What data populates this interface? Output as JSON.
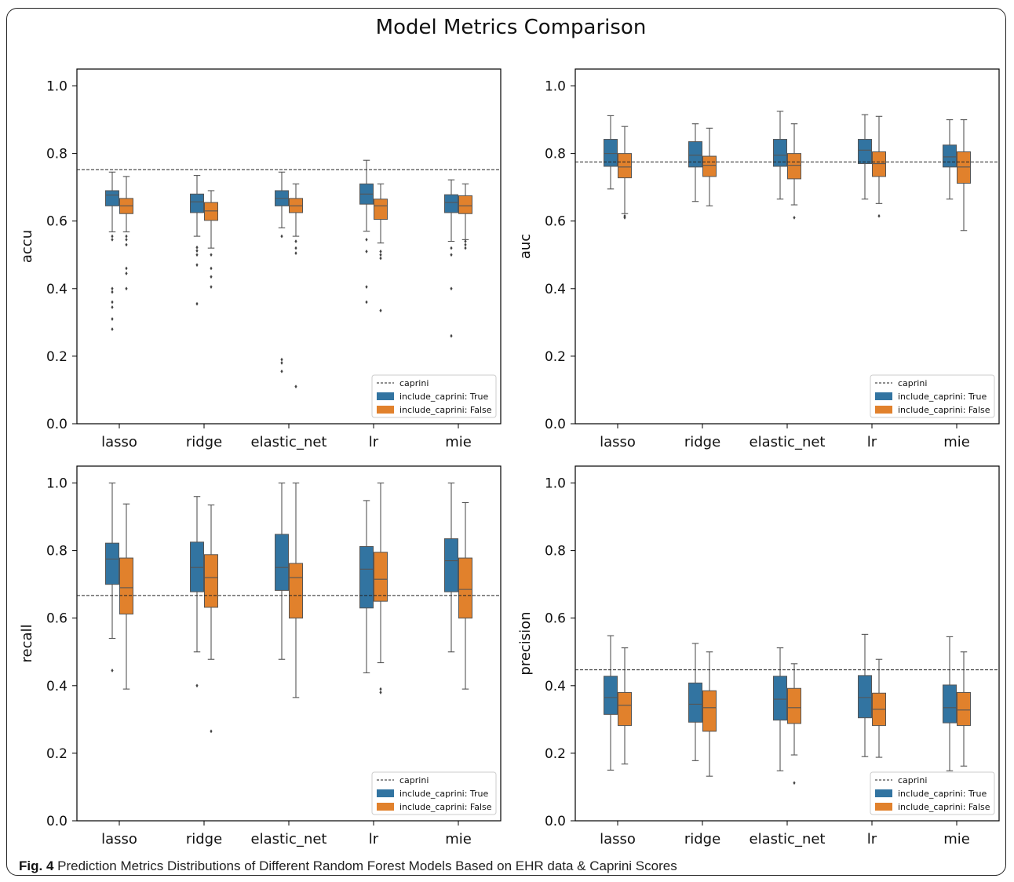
{
  "title": "Model Metrics Comparison",
  "caption": {
    "label": "Fig. 4",
    "text": "Prediction Metrics Distributions of Different Random Forest Models Based on EHR data & Caprini Scores"
  },
  "colors": {
    "true_box": "#3274a1",
    "false_box": "#e1812c",
    "whisker": "#555555",
    "baseline": "#222222"
  },
  "legend": {
    "position": "lower-right",
    "entries": [
      "caprini",
      "include_caprini: True",
      "include_caprini: False"
    ]
  },
  "chart_data": [
    {
      "type": "box",
      "ylabel": "accu",
      "xlabel": "",
      "ylim": [
        0,
        1.05
      ],
      "yticks": [
        "0.0",
        "0.2",
        "0.4",
        "0.6",
        "0.8",
        "1.0"
      ],
      "categories": [
        "lasso",
        "ridge",
        "elastic_net",
        "lr",
        "mie"
      ],
      "baseline": {
        "name": "caprini",
        "value": 0.752
      },
      "series": [
        {
          "name": "include_caprini: True",
          "boxes": [
            {
              "low": 0.568,
              "q1": 0.645,
              "median": 0.677,
              "q3": 0.69,
              "high": 0.745,
              "outliers": [
                0.555,
                0.545,
                0.4,
                0.39,
                0.36,
                0.345,
                0.31,
                0.28
              ]
            },
            {
              "low": 0.555,
              "q1": 0.625,
              "median": 0.657,
              "q3": 0.68,
              "high": 0.735,
              "outliers": [
                0.522,
                0.512,
                0.5,
                0.47,
                0.355
              ]
            },
            {
              "low": 0.58,
              "q1": 0.645,
              "median": 0.667,
              "q3": 0.69,
              "high": 0.745,
              "outliers": [
                0.555,
                0.19,
                0.18,
                0.155
              ]
            },
            {
              "low": 0.57,
              "q1": 0.65,
              "median": 0.68,
              "q3": 0.71,
              "high": 0.78,
              "outliers": [
                0.545,
                0.51,
                0.405,
                0.36
              ]
            },
            {
              "low": 0.54,
              "q1": 0.625,
              "median": 0.655,
              "q3": 0.678,
              "high": 0.722,
              "outliers": [
                0.52,
                0.5,
                0.4,
                0.26
              ]
            }
          ]
        },
        {
          "name": "include_caprini: False",
          "boxes": [
            {
              "low": 0.568,
              "q1": 0.622,
              "median": 0.645,
              "q3": 0.667,
              "high": 0.732,
              "outliers": [
                0.555,
                0.545,
                0.53,
                0.46,
                0.445,
                0.4
              ]
            },
            {
              "low": 0.52,
              "q1": 0.602,
              "median": 0.63,
              "q3": 0.655,
              "high": 0.69,
              "outliers": [
                0.5,
                0.46,
                0.435,
                0.405
              ]
            },
            {
              "low": 0.555,
              "q1": 0.625,
              "median": 0.645,
              "q3": 0.667,
              "high": 0.71,
              "outliers": [
                0.54,
                0.52,
                0.505,
                0.11
              ]
            },
            {
              "low": 0.535,
              "q1": 0.605,
              "median": 0.645,
              "q3": 0.665,
              "high": 0.71,
              "outliers": [
                0.51,
                0.5,
                0.49,
                0.335
              ]
            },
            {
              "low": 0.545,
              "q1": 0.622,
              "median": 0.645,
              "q3": 0.675,
              "high": 0.71,
              "outliers": [
                0.54,
                0.53,
                0.52
              ]
            }
          ]
        }
      ]
    },
    {
      "type": "box",
      "ylabel": "auc",
      "xlabel": "",
      "ylim": [
        0,
        1.05
      ],
      "yticks": [
        "0.0",
        "0.2",
        "0.4",
        "0.6",
        "0.8",
        "1.0"
      ],
      "categories": [
        "lasso",
        "ridge",
        "elastic_net",
        "lr",
        "mie"
      ],
      "baseline": {
        "name": "caprini",
        "value": 0.775
      },
      "series": [
        {
          "name": "include_caprini: True",
          "boxes": [
            {
              "low": 0.695,
              "q1": 0.762,
              "median": 0.8,
              "q3": 0.842,
              "high": 0.912,
              "outliers": []
            },
            {
              "low": 0.658,
              "q1": 0.76,
              "median": 0.795,
              "q3": 0.835,
              "high": 0.888,
              "outliers": []
            },
            {
              "low": 0.665,
              "q1": 0.762,
              "median": 0.795,
              "q3": 0.842,
              "high": 0.925,
              "outliers": []
            },
            {
              "low": 0.665,
              "q1": 0.77,
              "median": 0.81,
              "q3": 0.842,
              "high": 0.915,
              "outliers": []
            },
            {
              "low": 0.665,
              "q1": 0.76,
              "median": 0.79,
              "q3": 0.825,
              "high": 0.9,
              "outliers": []
            }
          ]
        },
        {
          "name": "include_caprini: False",
          "boxes": [
            {
              "low": 0.622,
              "q1": 0.728,
              "median": 0.76,
              "q3": 0.8,
              "high": 0.88,
              "outliers": [
                0.615,
                0.61
              ]
            },
            {
              "low": 0.645,
              "q1": 0.732,
              "median": 0.765,
              "q3": 0.792,
              "high": 0.875,
              "outliers": []
            },
            {
              "low": 0.648,
              "q1": 0.725,
              "median": 0.765,
              "q3": 0.8,
              "high": 0.888,
              "outliers": [
                0.61
              ]
            },
            {
              "low": 0.652,
              "q1": 0.732,
              "median": 0.77,
              "q3": 0.805,
              "high": 0.91,
              "outliers": [
                0.615
              ]
            },
            {
              "low": 0.572,
              "q1": 0.712,
              "median": 0.76,
              "q3": 0.805,
              "high": 0.9,
              "outliers": []
            }
          ]
        }
      ]
    },
    {
      "type": "box",
      "ylabel": "recall",
      "xlabel": "",
      "ylim": [
        0,
        1.05
      ],
      "yticks": [
        "0.0",
        "0.2",
        "0.4",
        "0.6",
        "0.8",
        "1.0"
      ],
      "categories": [
        "lasso",
        "ridge",
        "elastic_net",
        "lr",
        "mie"
      ],
      "baseline": {
        "name": "caprini",
        "value": 0.667
      },
      "series": [
        {
          "name": "include_caprini: True",
          "boxes": [
            {
              "low": 0.54,
              "q1": 0.7,
              "median": 0.775,
              "q3": 0.822,
              "high": 1.0,
              "outliers": [
                0.445
              ]
            },
            {
              "low": 0.5,
              "q1": 0.678,
              "median": 0.75,
              "q3": 0.825,
              "high": 0.96,
              "outliers": [
                0.4
              ]
            },
            {
              "low": 0.478,
              "q1": 0.682,
              "median": 0.75,
              "q3": 0.848,
              "high": 1.0,
              "outliers": []
            },
            {
              "low": 0.438,
              "q1": 0.63,
              "median": 0.745,
              "q3": 0.812,
              "high": 0.948,
              "outliers": []
            },
            {
              "low": 0.5,
              "q1": 0.678,
              "median": 0.77,
              "q3": 0.835,
              "high": 1.0,
              "outliers": []
            }
          ]
        },
        {
          "name": "include_caprini: False",
          "boxes": [
            {
              "low": 0.39,
              "q1": 0.612,
              "median": 0.69,
              "q3": 0.778,
              "high": 0.938,
              "outliers": []
            },
            {
              "low": 0.478,
              "q1": 0.632,
              "median": 0.72,
              "q3": 0.788,
              "high": 0.935,
              "outliers": [
                0.265
              ]
            },
            {
              "low": 0.365,
              "q1": 0.6,
              "median": 0.72,
              "q3": 0.762,
              "high": 1.0,
              "outliers": []
            },
            {
              "low": 0.468,
              "q1": 0.65,
              "median": 0.715,
              "q3": 0.795,
              "high": 1.0,
              "outliers": [
                0.39,
                0.38
              ]
            },
            {
              "low": 0.39,
              "q1": 0.6,
              "median": 0.685,
              "q3": 0.778,
              "high": 0.942,
              "outliers": []
            }
          ]
        }
      ]
    },
    {
      "type": "box",
      "ylabel": "precision",
      "xlabel": "",
      "ylim": [
        0,
        1.05
      ],
      "yticks": [
        "0.0",
        "0.2",
        "0.4",
        "0.6",
        "0.8",
        "1.0"
      ],
      "categories": [
        "lasso",
        "ridge",
        "elastic_net",
        "lr",
        "mie"
      ],
      "baseline": {
        "name": "caprini",
        "value": 0.447
      },
      "series": [
        {
          "name": "include_caprini: True",
          "boxes": [
            {
              "low": 0.15,
              "q1": 0.315,
              "median": 0.365,
              "q3": 0.428,
              "high": 0.548,
              "outliers": []
            },
            {
              "low": 0.178,
              "q1": 0.292,
              "median": 0.345,
              "q3": 0.408,
              "high": 0.525,
              "outliers": []
            },
            {
              "low": 0.148,
              "q1": 0.298,
              "median": 0.36,
              "q3": 0.428,
              "high": 0.512,
              "outliers": []
            },
            {
              "low": 0.19,
              "q1": 0.305,
              "median": 0.365,
              "q3": 0.43,
              "high": 0.552,
              "outliers": []
            },
            {
              "low": 0.148,
              "q1": 0.29,
              "median": 0.335,
              "q3": 0.402,
              "high": 0.545,
              "outliers": []
            }
          ]
        },
        {
          "name": "include_caprini: False",
          "boxes": [
            {
              "low": 0.168,
              "q1": 0.282,
              "median": 0.342,
              "q3": 0.38,
              "high": 0.512,
              "outliers": []
            },
            {
              "low": 0.132,
              "q1": 0.265,
              "median": 0.335,
              "q3": 0.385,
              "high": 0.5,
              "outliers": []
            },
            {
              "low": 0.195,
              "q1": 0.288,
              "median": 0.335,
              "q3": 0.392,
              "high": 0.465,
              "outliers": [
                0.112
              ]
            },
            {
              "low": 0.188,
              "q1": 0.282,
              "median": 0.33,
              "q3": 0.378,
              "high": 0.478,
              "outliers": []
            },
            {
              "low": 0.162,
              "q1": 0.282,
              "median": 0.328,
              "q3": 0.38,
              "high": 0.5,
              "outliers": []
            }
          ]
        }
      ]
    }
  ]
}
